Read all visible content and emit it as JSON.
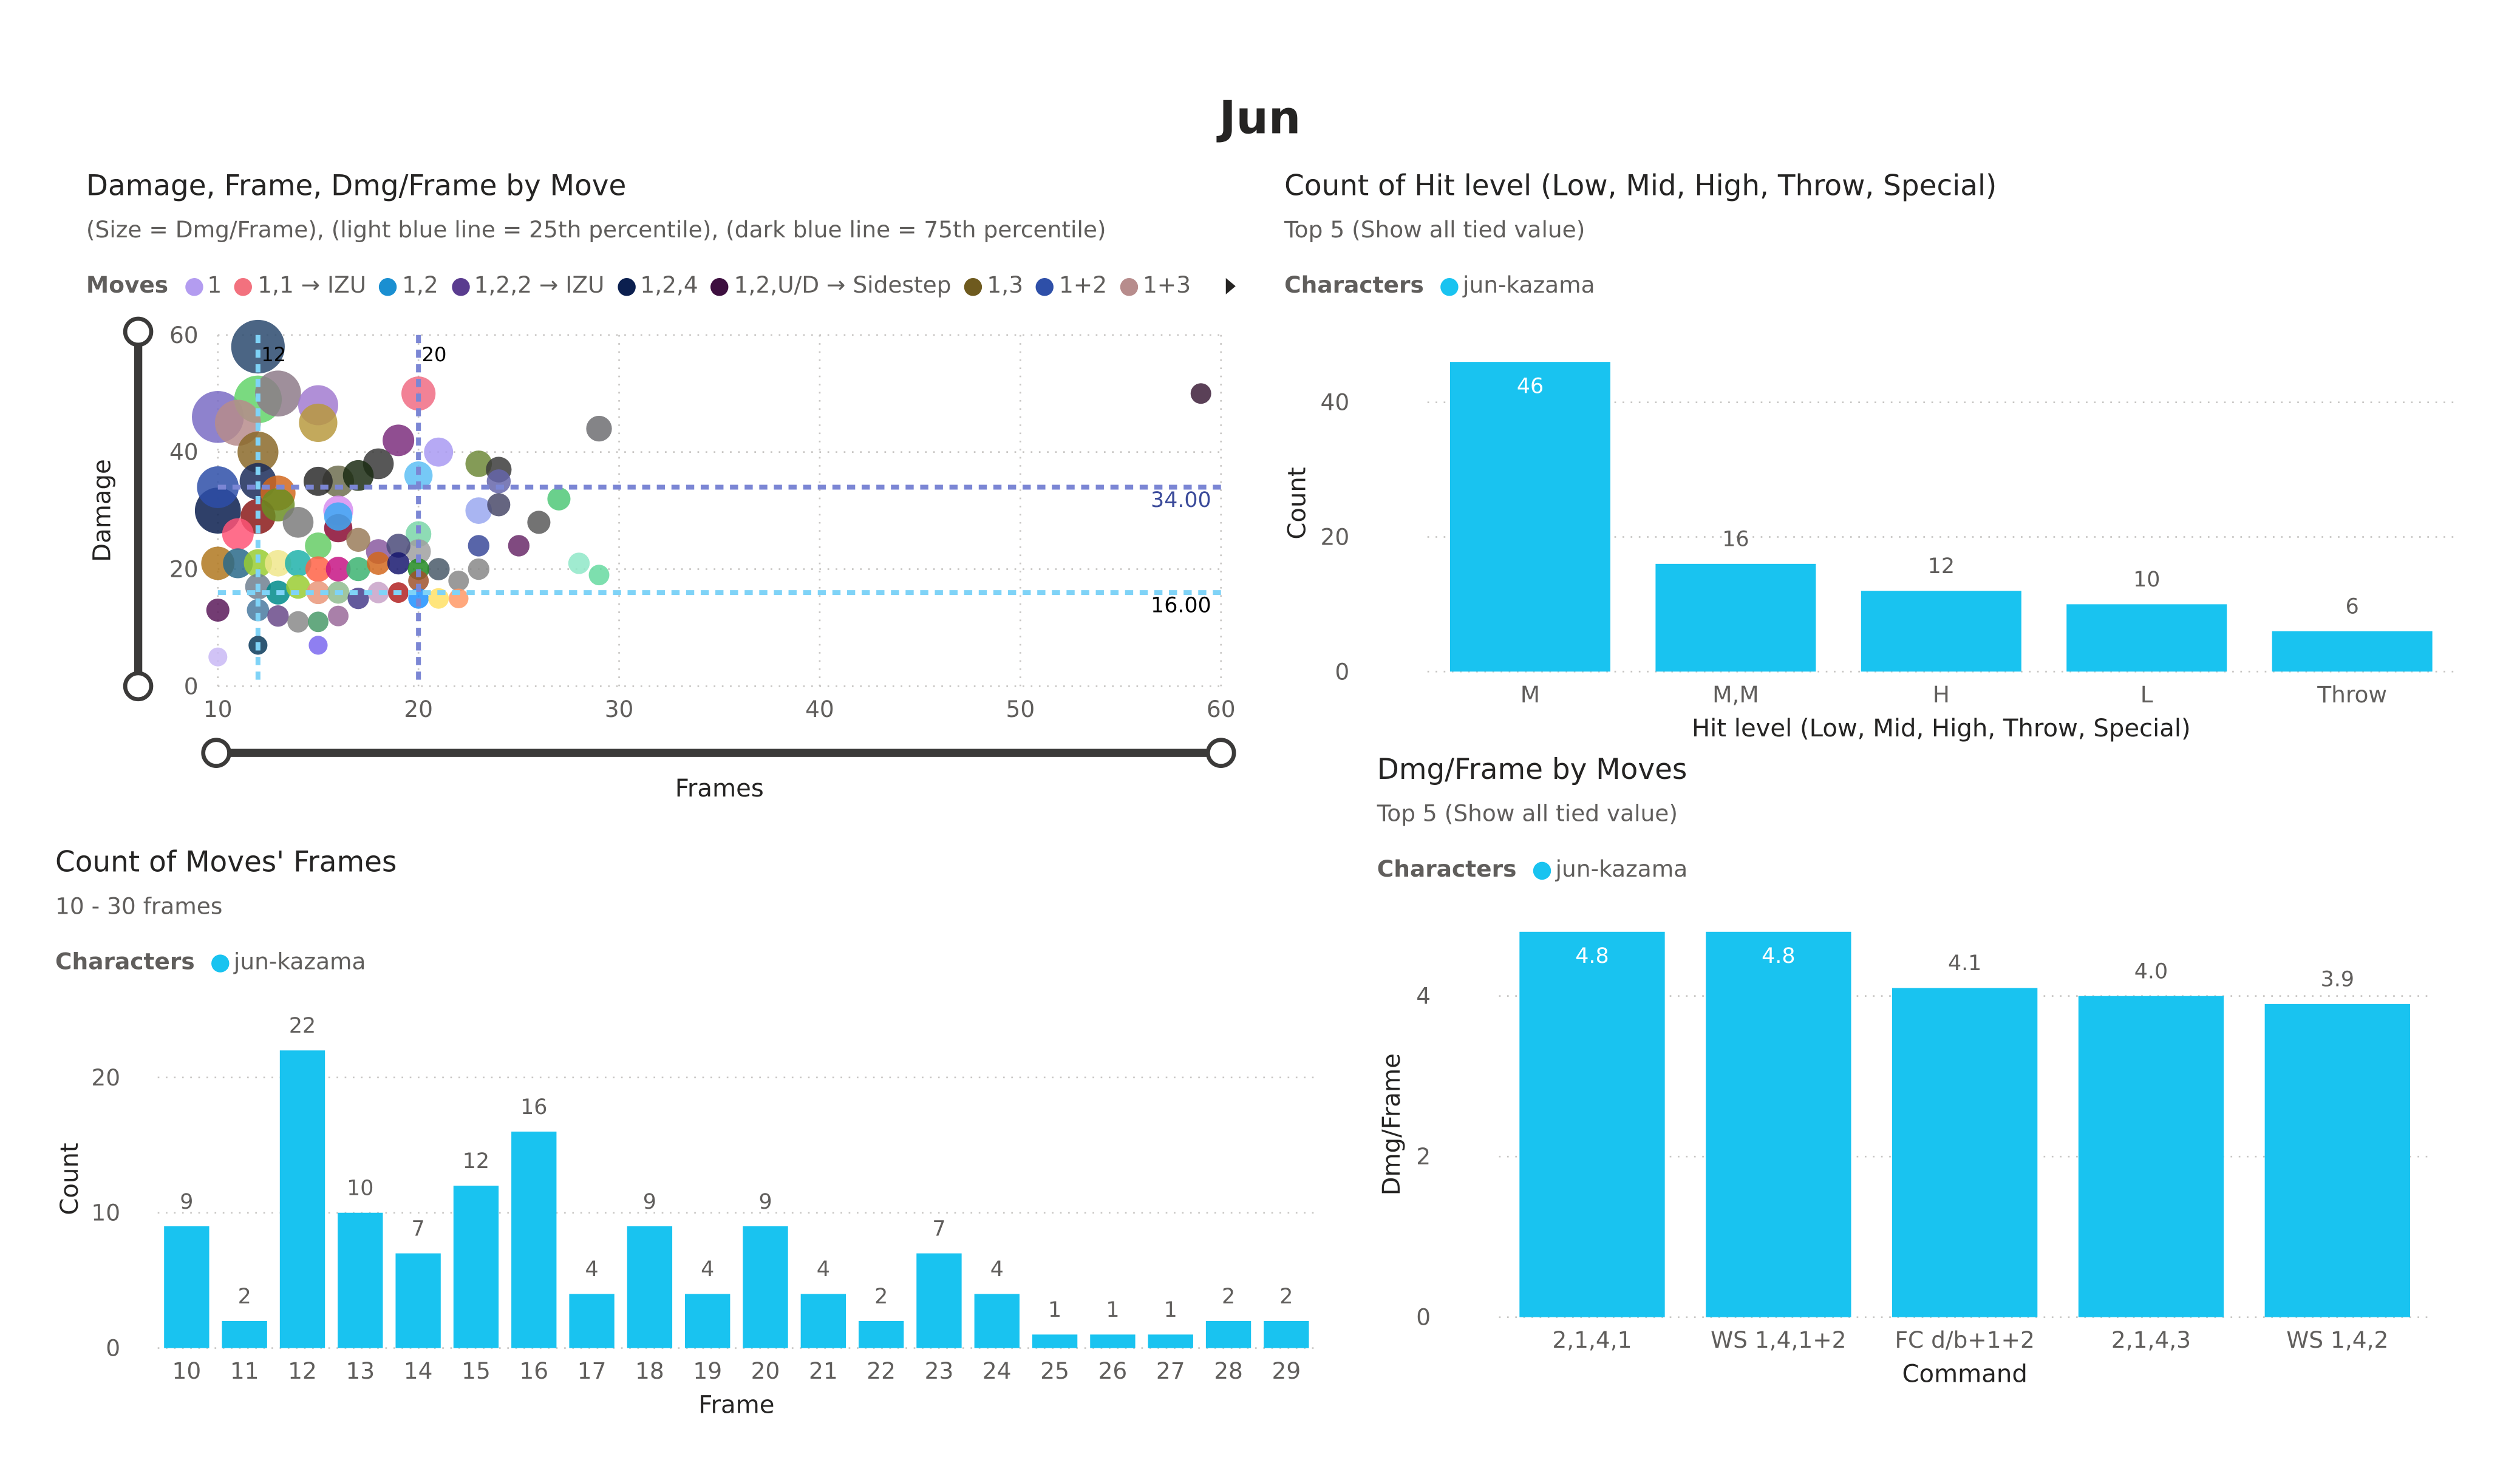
{
  "page": {
    "title": "Jun"
  },
  "colors": {
    "bar": "#19c3f0",
    "axis_text": "#605e5c",
    "p25_line": "#7fd3f7",
    "p75_line": "#7b86d4",
    "slider": "#3b3a39"
  },
  "scatter": {
    "title": "Damage, Frame, Dmg/Frame by Move",
    "subtitle": "(Size = Dmg/Frame), (light blue line = 25th percentile), (dark blue line = 75th percentile)",
    "legend_title": "Moves",
    "legend": [
      {
        "label": "1",
        "color": "#b39cf0"
      },
      {
        "label": "1,1 → IZU",
        "color": "#f2717e"
      },
      {
        "label": "1,2",
        "color": "#1a8fd1"
      },
      {
        "label": "1,2,2 → IZU",
        "color": "#5a3c8f"
      },
      {
        "label": "1,2,4",
        "color": "#0b1f4f"
      },
      {
        "label": "1,2,U/D → Sidestep",
        "color": "#3d0f3f"
      },
      {
        "label": "1,3",
        "color": "#6e5a1e"
      },
      {
        "label": "1+2",
        "color": "#2e4fa8"
      },
      {
        "label": "1+3",
        "color": "#b78c8c"
      }
    ],
    "legend_more_icon": "chevron-right-icon"
  },
  "hit": {
    "title": "Count of Hit level (Low, Mid, High, Throw, Special)",
    "subtitle": "Top 5 (Show all tied value)",
    "legend_title": "Characters",
    "legend_item": "jun-kazama"
  },
  "moves": {
    "title": "Count of Moves' Frames",
    "subtitle": "10 - 30 frames",
    "legend_title": "Characters",
    "legend_item": "jun-kazama"
  },
  "dmg": {
    "title": "Dmg/Frame by Moves",
    "subtitle": "Top 5 (Show all tied value)",
    "legend_title": "Characters",
    "legend_item": "jun-kazama"
  },
  "chart_data": [
    {
      "id": "scatter",
      "type": "scatter",
      "xlabel": "Frames",
      "ylabel": "Damage",
      "xlim": [
        10,
        60
      ],
      "ylim": [
        0,
        60
      ],
      "xticks": [
        10,
        20,
        30,
        40,
        50,
        60
      ],
      "yticks": [
        0,
        20,
        40,
        60
      ],
      "grid": true,
      "reference_lines": {
        "vertical": [
          {
            "x": 12,
            "label": "12",
            "color": "#7fd3f7"
          },
          {
            "x": 20,
            "label": "20",
            "color": "#7b86d4"
          }
        ],
        "horizontal": [
          {
            "y": 34,
            "label": "34.00",
            "color": "#7b86d4"
          },
          {
            "y": 16,
            "label": "16.00",
            "color": "#7fd3f7"
          }
        ]
      },
      "points": [
        {
          "x": 12,
          "y": 58,
          "size": 4.8,
          "color": "#2c4a6e"
        },
        {
          "x": 10,
          "y": 46,
          "size": 4.6,
          "color": "#7a6cc4"
        },
        {
          "x": 12,
          "y": 49,
          "size": 4.1,
          "color": "#63d46a"
        },
        {
          "x": 13,
          "y": 50,
          "size": 3.9,
          "color": "#8e7b8a"
        },
        {
          "x": 15,
          "y": 48,
          "size": 3.2,
          "color": "#a27bd0"
        },
        {
          "x": 11,
          "y": 45,
          "size": 3.9,
          "color": "#b78c8c"
        },
        {
          "x": 15,
          "y": 45,
          "size": 3.0,
          "color": "#b89a40"
        },
        {
          "x": 12,
          "y": 40,
          "size": 3.3,
          "color": "#8b6a2a"
        },
        {
          "x": 19,
          "y": 42,
          "size": 2.2,
          "color": "#7c2f7e"
        },
        {
          "x": 21,
          "y": 40,
          "size": 1.9,
          "color": "#a99af2"
        },
        {
          "x": 20,
          "y": 50,
          "size": 2.5,
          "color": "#f06c84"
        },
        {
          "x": 18,
          "y": 38,
          "size": 2.1,
          "color": "#3a3a3a"
        },
        {
          "x": 17,
          "y": 36,
          "size": 2.1,
          "color": "#1c2d14"
        },
        {
          "x": 16,
          "y": 35,
          "size": 2.2,
          "color": "#6e6e50"
        },
        {
          "x": 15,
          "y": 35,
          "size": 1.9,
          "color": "#2d2d2d"
        },
        {
          "x": 20,
          "y": 36,
          "size": 1.8,
          "color": "#5ec0f5"
        },
        {
          "x": 23,
          "y": 38,
          "size": 1.6,
          "color": "#6e8a3a"
        },
        {
          "x": 24,
          "y": 37,
          "size": 1.5,
          "color": "#3c3c3c"
        },
        {
          "x": 29,
          "y": 44,
          "size": 1.5,
          "color": "#6e6e72"
        },
        {
          "x": 59,
          "y": 50,
          "size": 0.9,
          "color": "#3d1f3a"
        },
        {
          "x": 10,
          "y": 34,
          "size": 3.4,
          "color": "#2e4fa8"
        },
        {
          "x": 10,
          "y": 30,
          "size": 3.9,
          "color": "#0b1f4f"
        },
        {
          "x": 12,
          "y": 35,
          "size": 2.8,
          "color": "#1c2d5a"
        },
        {
          "x": 13,
          "y": 33,
          "size": 2.6,
          "color": "#d2691e"
        },
        {
          "x": 13,
          "y": 31,
          "size": 2.4,
          "color": "#6b8e23"
        },
        {
          "x": 12,
          "y": 29,
          "size": 2.6,
          "color": "#8b1a1a"
        },
        {
          "x": 11,
          "y": 26,
          "size": 2.2,
          "color": "#ff5577"
        },
        {
          "x": 14,
          "y": 28,
          "size": 2.1,
          "color": "#7d7d7d"
        },
        {
          "x": 16,
          "y": 30,
          "size": 2.0,
          "color": "#d68ef0"
        },
        {
          "x": 16,
          "y": 27,
          "size": 1.8,
          "color": "#8a0a33"
        },
        {
          "x": 16,
          "y": 29,
          "size": 1.8,
          "color": "#3fa9f5"
        },
        {
          "x": 15,
          "y": 24,
          "size": 1.6,
          "color": "#66cc66"
        },
        {
          "x": 17,
          "y": 25,
          "size": 1.3,
          "color": "#9a7d5a"
        },
        {
          "x": 18,
          "y": 23,
          "size": 1.4,
          "color": "#8a5aa0"
        },
        {
          "x": 19,
          "y": 24,
          "size": 1.3,
          "color": "#4b4b7a"
        },
        {
          "x": 20,
          "y": 26,
          "size": 1.5,
          "color": "#7ad6a8"
        },
        {
          "x": 20,
          "y": 23,
          "size": 1.4,
          "color": "#a0a0a0"
        },
        {
          "x": 21,
          "y": 20,
          "size": 1.1,
          "color": "#4a5a6a"
        },
        {
          "x": 23,
          "y": 20,
          "size": 1.0,
          "color": "#888888"
        },
        {
          "x": 23,
          "y": 24,
          "size": 1.0,
          "color": "#3b4a9a"
        },
        {
          "x": 24,
          "y": 31,
          "size": 1.2,
          "color": "#4a4a6a"
        },
        {
          "x": 23,
          "y": 30,
          "size": 1.6,
          "color": "#9aa8f0"
        },
        {
          "x": 24,
          "y": 35,
          "size": 1.3,
          "color": "#6666aa"
        },
        {
          "x": 26,
          "y": 28,
          "size": 1.2,
          "color": "#5a5a5a"
        },
        {
          "x": 27,
          "y": 32,
          "size": 1.2,
          "color": "#50c878"
        },
        {
          "x": 25,
          "y": 24,
          "size": 1.0,
          "color": "#6a2a6a"
        },
        {
          "x": 28,
          "y": 21,
          "size": 1.0,
          "color": "#8fe8c8"
        },
        {
          "x": 29,
          "y": 19,
          "size": 0.9,
          "color": "#66d9a0"
        },
        {
          "x": 10,
          "y": 21,
          "size": 2.4,
          "color": "#b07820"
        },
        {
          "x": 11,
          "y": 21,
          "size": 2.0,
          "color": "#2a6a8a"
        },
        {
          "x": 12,
          "y": 21,
          "size": 1.8,
          "color": "#99cc33"
        },
        {
          "x": 13,
          "y": 21,
          "size": 1.6,
          "color": "#f0e68c"
        },
        {
          "x": 14,
          "y": 21,
          "size": 1.6,
          "color": "#20b2aa"
        },
        {
          "x": 15,
          "y": 20,
          "size": 1.5,
          "color": "#ff6347"
        },
        {
          "x": 16,
          "y": 20,
          "size": 1.4,
          "color": "#c71585"
        },
        {
          "x": 17,
          "y": 20,
          "size": 1.3,
          "color": "#3cb371"
        },
        {
          "x": 18,
          "y": 21,
          "size": 1.2,
          "color": "#d2691e"
        },
        {
          "x": 19,
          "y": 21,
          "size": 1.1,
          "color": "#191970"
        },
        {
          "x": 20,
          "y": 20,
          "size": 1.0,
          "color": "#228b22"
        },
        {
          "x": 20,
          "y": 18,
          "size": 0.9,
          "color": "#a0522d"
        },
        {
          "x": 22,
          "y": 18,
          "size": 0.9,
          "color": "#888888"
        },
        {
          "x": 12,
          "y": 17,
          "size": 1.5,
          "color": "#708090"
        },
        {
          "x": 13,
          "y": 16,
          "size": 1.3,
          "color": "#008b8b"
        },
        {
          "x": 14,
          "y": 17,
          "size": 1.3,
          "color": "#9acd32"
        },
        {
          "x": 15,
          "y": 16,
          "size": 1.2,
          "color": "#e9967a"
        },
        {
          "x": 16,
          "y": 16,
          "size": 1.1,
          "color": "#8fbc8f"
        },
        {
          "x": 17,
          "y": 15,
          "size": 1.0,
          "color": "#483d8b"
        },
        {
          "x": 18,
          "y": 16,
          "size": 1.0,
          "color": "#c8a2c8"
        },
        {
          "x": 19,
          "y": 16,
          "size": 0.9,
          "color": "#b22222"
        },
        {
          "x": 20,
          "y": 15,
          "size": 0.9,
          "color": "#1e90ff"
        },
        {
          "x": 21,
          "y": 15,
          "size": 0.9,
          "color": "#ffe066"
        },
        {
          "x": 22,
          "y": 15,
          "size": 0.8,
          "color": "#ff9966"
        },
        {
          "x": 10,
          "y": 13,
          "size": 1.2,
          "color": "#5a1a5a"
        },
        {
          "x": 12,
          "y": 13,
          "size": 1.1,
          "color": "#4a7aa0"
        },
        {
          "x": 13,
          "y": 12,
          "size": 1.0,
          "color": "#6a4a8a"
        },
        {
          "x": 14,
          "y": 11,
          "size": 1.0,
          "color": "#8a8a8a"
        },
        {
          "x": 15,
          "y": 11,
          "size": 0.9,
          "color": "#4a9a6a"
        },
        {
          "x": 16,
          "y": 12,
          "size": 0.9,
          "color": "#9a6a9a"
        },
        {
          "x": 15,
          "y": 7,
          "size": 0.7,
          "color": "#7b68ee"
        },
        {
          "x": 12,
          "y": 7,
          "size": 0.7,
          "color": "#0b3a5a"
        },
        {
          "x": 10,
          "y": 5,
          "size": 0.7,
          "color": "#c9b8f5"
        }
      ]
    },
    {
      "id": "hit",
      "type": "bar",
      "categories": [
        "M",
        "M,M",
        "H",
        "L",
        "Throw"
      ],
      "values": [
        46,
        16,
        12,
        10,
        6
      ],
      "xlabel": "Hit level (Low, Mid, High, Throw, Special)",
      "ylabel": "Count",
      "ylim": [
        0,
        50
      ],
      "yticks": [
        0,
        20,
        40
      ],
      "labels": [
        "46",
        "16",
        "12",
        "10",
        "6"
      ]
    },
    {
      "id": "moves",
      "type": "bar",
      "categories": [
        "10",
        "11",
        "12",
        "13",
        "14",
        "15",
        "16",
        "17",
        "18",
        "19",
        "20",
        "21",
        "22",
        "23",
        "24",
        "25",
        "26",
        "27",
        "28",
        "29"
      ],
      "values": [
        9,
        2,
        22,
        10,
        7,
        12,
        16,
        4,
        9,
        4,
        9,
        4,
        2,
        7,
        4,
        1,
        1,
        1,
        2,
        2
      ],
      "xlabel": "Frame",
      "ylabel": "Count",
      "ylim": [
        0,
        25
      ],
      "yticks": [
        0,
        10,
        20
      ],
      "labels": [
        "9",
        "2",
        "22",
        "10",
        "7",
        "12",
        "16",
        "4",
        "9",
        "4",
        "9",
        "4",
        "2",
        "7",
        "4",
        "1",
        "1",
        "1",
        "2",
        "2"
      ]
    },
    {
      "id": "dmg",
      "type": "bar",
      "categories": [
        "2,1,4,1",
        "WS 1,4,1+2",
        "FC d/b+1+2",
        "2,1,4,3",
        "WS 1,4,2"
      ],
      "values": [
        4.8,
        4.8,
        4.1,
        4.0,
        3.9
      ],
      "xlabel": "Command",
      "ylabel": "Dmg/Frame",
      "ylim": [
        0,
        4.8
      ],
      "yticks": [
        0,
        2,
        4
      ],
      "labels": [
        "4.8",
        "4.8",
        "4.1",
        "4.0",
        "3.9"
      ]
    }
  ]
}
